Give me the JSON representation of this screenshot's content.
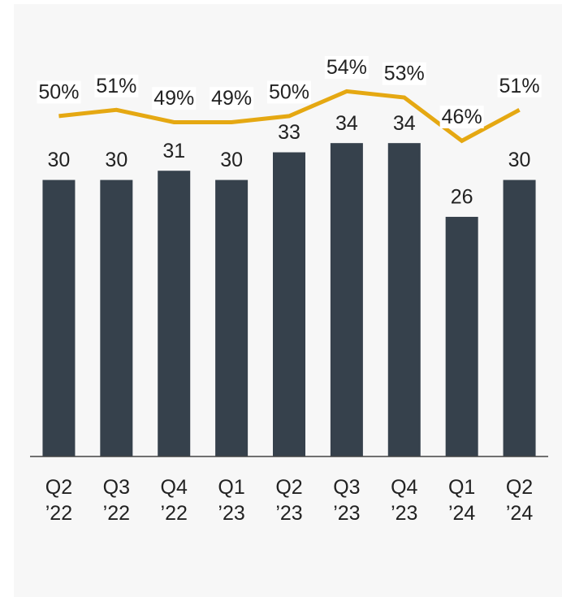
{
  "chart_data": {
    "type": "bar",
    "categories": [
      "Q2\n’22",
      "Q3\n’22",
      "Q4\n’22",
      "Q1\n’23",
      "Q2\n’23",
      "Q3\n’23",
      "Q4\n’23",
      "Q1\n’24",
      "Q2\n’24"
    ],
    "series": [
      {
        "type": "bar",
        "color": "#36414c",
        "values": [
          30,
          30,
          31,
          30,
          33,
          34,
          34,
          26,
          30
        ]
      },
      {
        "type": "line",
        "axis": "y2",
        "color": "#e5a812",
        "values": [
          50,
          51,
          49,
          49,
          50,
          54,
          53,
          46,
          51
        ],
        "value_labels": [
          "50%",
          "51%",
          "49%",
          "49%",
          "50%",
          "54%",
          "53%",
          "46%",
          "51%"
        ]
      }
    ],
    "ylim": [
      0,
      46
    ],
    "y2lim": [
      -5,
      63.5
    ]
  }
}
